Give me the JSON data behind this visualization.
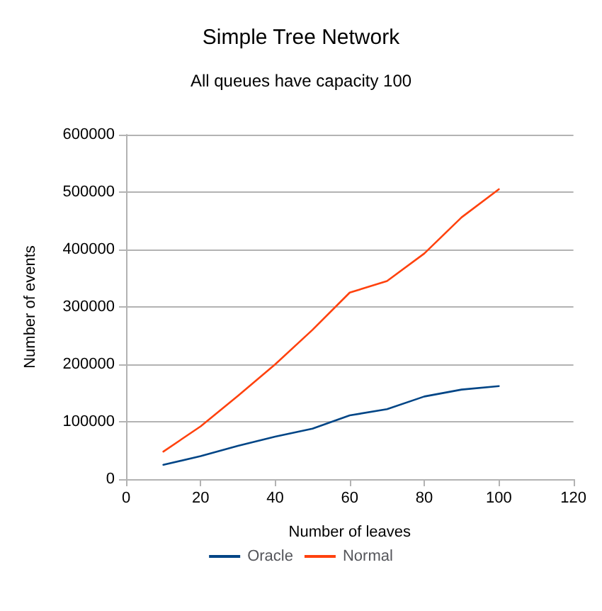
{
  "chart_data": {
    "type": "line",
    "title": "Simple Tree Network",
    "subtitle": "All queues have capacity 100",
    "xlabel": "Number of leaves",
    "ylabel": "Number of events",
    "x": [
      10,
      20,
      30,
      40,
      50,
      60,
      70,
      80,
      90,
      100
    ],
    "series": [
      {
        "name": "Oracle",
        "color": "#004586",
        "values": [
          25000,
          40000,
          58000,
          74000,
          88000,
          111000,
          122000,
          144000,
          156000,
          162000
        ]
      },
      {
        "name": "Normal",
        "color": "#ff420e",
        "values": [
          48000,
          92000,
          145000,
          200000,
          260000,
          325000,
          345000,
          393000,
          456000,
          505000
        ]
      }
    ],
    "xlim": [
      0,
      120
    ],
    "xticks": [
      0,
      20,
      40,
      60,
      80,
      100,
      120
    ],
    "ylim": [
      0,
      600000
    ],
    "yticks": [
      0,
      100000,
      200000,
      300000,
      400000,
      500000,
      600000
    ],
    "grid": "y",
    "legend": "bottom",
    "marker": "none",
    "line_style": "solid"
  }
}
